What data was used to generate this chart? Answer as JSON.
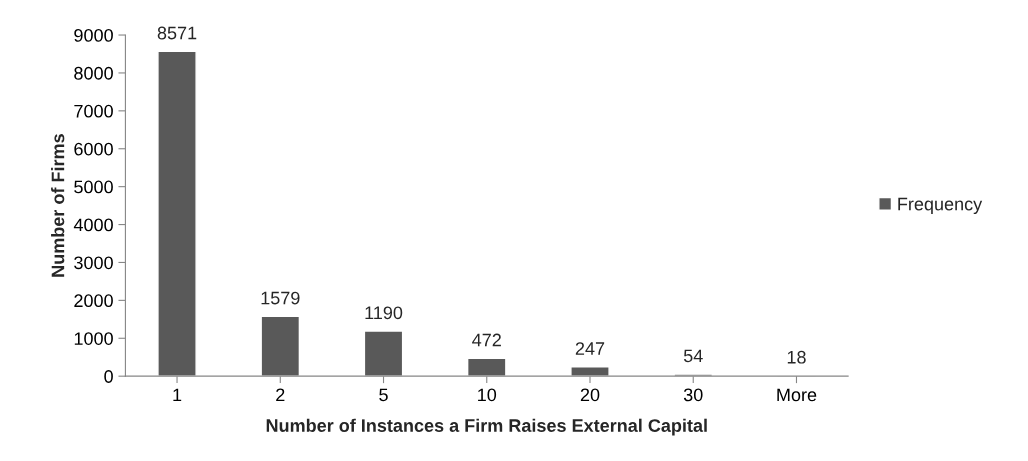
{
  "chart_data": {
    "type": "bar",
    "xlabel": "Number of Instances a Firm Raises External Capital",
    "ylabel": "Number of Firms",
    "categories": [
      "1",
      "2",
      "5",
      "10",
      "20",
      "30",
      "More"
    ],
    "series": [
      {
        "name": "Frequency",
        "color": "#595959",
        "values": [
          8571,
          1579,
          1190,
          472,
          247,
          54,
          18
        ]
      }
    ],
    "ylim": [
      0,
      9000
    ],
    "yticks": [
      0,
      1000,
      2000,
      3000,
      4000,
      5000,
      6000,
      7000,
      8000,
      9000
    ],
    "data_labels": true,
    "grid": false,
    "legend": "right"
  }
}
